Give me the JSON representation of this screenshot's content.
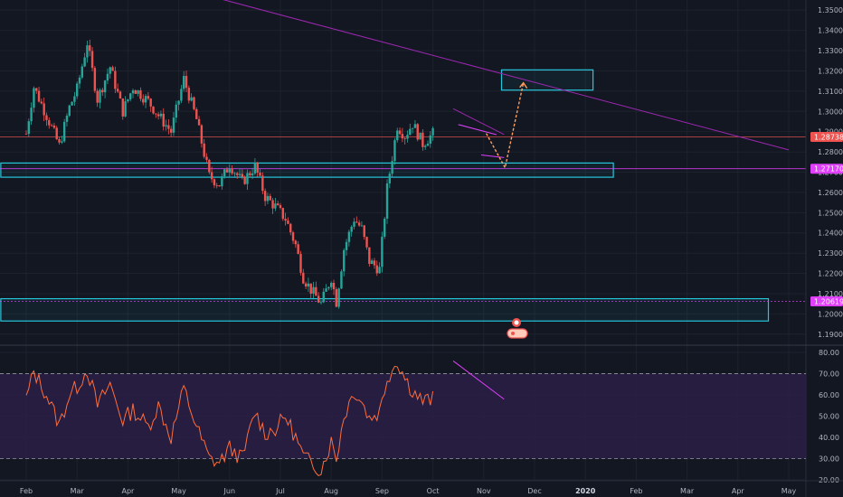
{
  "chart_data": [
    {
      "type": "candlestick",
      "instrument_panel": "price",
      "ylim": [
        1.185,
        1.355
      ],
      "y_ticks": [
        "1.35000",
        "1.34000",
        "1.33000",
        "1.32000",
        "1.31000",
        "1.30000",
        "1.29000",
        "1.28000",
        "1.27000",
        "1.26000",
        "1.25000",
        "1.24000",
        "1.23000",
        "1.22000",
        "1.21000",
        "1.20000",
        "1.19000"
      ],
      "price_tags": [
        {
          "label": "1.28738",
          "value": 1.2874,
          "color": "#ef5350"
        },
        {
          "label": "1.27170",
          "value": 1.2717,
          "color": "#e040fb"
        },
        {
          "label": "1.20619",
          "value": 1.2062,
          "color": "#e040fb"
        }
      ],
      "anchors": [
        {
          "m": 0.0,
          "price": 1.289
        },
        {
          "m": 0.15,
          "price": 1.312
        },
        {
          "m": 0.4,
          "price": 1.298
        },
        {
          "m": 0.65,
          "price": 1.283
        },
        {
          "m": 0.85,
          "price": 1.302
        },
        {
          "m": 1.0,
          "price": 1.311
        },
        {
          "m": 1.2,
          "price": 1.334
        },
        {
          "m": 1.4,
          "price": 1.306
        },
        {
          "m": 1.65,
          "price": 1.322
        },
        {
          "m": 1.9,
          "price": 1.3
        },
        {
          "m": 2.1,
          "price": 1.312
        },
        {
          "m": 2.4,
          "price": 1.305
        },
        {
          "m": 2.6,
          "price": 1.298
        },
        {
          "m": 2.85,
          "price": 1.29
        },
        {
          "m": 3.1,
          "price": 1.316
        },
        {
          "m": 3.35,
          "price": 1.296
        },
        {
          "m": 3.6,
          "price": 1.268
        },
        {
          "m": 3.8,
          "price": 1.264
        },
        {
          "m": 4.0,
          "price": 1.274
        },
        {
          "m": 4.25,
          "price": 1.265
        },
        {
          "m": 4.5,
          "price": 1.273
        },
        {
          "m": 4.7,
          "price": 1.258
        },
        {
          "m": 4.9,
          "price": 1.253
        },
        {
          "m": 5.1,
          "price": 1.247
        },
        {
          "m": 5.3,
          "price": 1.234
        },
        {
          "m": 5.45,
          "price": 1.218
        },
        {
          "m": 5.6,
          "price": 1.212
        },
        {
          "m": 5.8,
          "price": 1.205
        },
        {
          "m": 6.0,
          "price": 1.218
        },
        {
          "m": 6.1,
          "price": 1.206
        },
        {
          "m": 6.25,
          "price": 1.232
        },
        {
          "m": 6.45,
          "price": 1.247
        },
        {
          "m": 6.6,
          "price": 1.242
        },
        {
          "m": 6.75,
          "price": 1.226
        },
        {
          "m": 6.95,
          "price": 1.222
        },
        {
          "m": 7.1,
          "price": 1.262
        },
        {
          "m": 7.3,
          "price": 1.293
        },
        {
          "m": 7.45,
          "price": 1.288
        },
        {
          "m": 7.6,
          "price": 1.294
        },
        {
          "m": 7.8,
          "price": 1.284
        },
        {
          "m": 8.0,
          "price": 1.289
        }
      ],
      "zones": [
        {
          "m0": 9.35,
          "m1": 11.15,
          "p0": 1.3105,
          "p1": 1.3205,
          "color": "#26c6da"
        },
        {
          "m0": -0.5,
          "m1": 11.55,
          "p0": 1.2675,
          "p1": 1.2745,
          "color": "#26c6da"
        },
        {
          "m0": -0.5,
          "m1": 14.6,
          "p0": 1.1965,
          "p1": 1.2075,
          "color": "#26c6da"
        }
      ],
      "trendlines": [
        {
          "m0": 3.6,
          "p0": 1.357,
          "m1": 15.0,
          "p1": 1.281,
          "color": "#9c27b0"
        },
        {
          "m0": 8.4,
          "p0": 1.3013,
          "m1": 9.4,
          "p1": 1.2886,
          "color": "#9c27b0"
        },
        {
          "m0": 8.5,
          "p0": 1.2935,
          "m1": 9.25,
          "p1": 1.2885,
          "color": "#e040fb"
        },
        {
          "m0": 8.95,
          "p0": 1.2785,
          "m1": 9.4,
          "p1": 1.2772,
          "color": "#e040fb"
        }
      ],
      "projection": [
        {
          "m": 9.05,
          "price": 1.2891
        },
        {
          "m": 9.42,
          "price": 1.2722
        },
        {
          "m": 9.78,
          "price": 1.3141
        }
      ]
    },
    {
      "type": "line",
      "instrument_panel": "oscillator",
      "ylim": [
        20,
        83
      ],
      "y_ticks": [
        "80.00",
        "70.00",
        "60.00",
        "50.00",
        "40.00",
        "30.00",
        "20.00"
      ],
      "bands": [
        30,
        70
      ],
      "x_ticks": [
        "Feb",
        "Mar",
        "Apr",
        "May",
        "Jun",
        "Jul",
        "Aug",
        "Sep",
        "Oct",
        "Nov",
        "Dec",
        "2020",
        "Feb",
        "Mar",
        "Apr",
        "May"
      ],
      "anchors": [
        {
          "m": 0.0,
          "value": 58
        },
        {
          "m": 0.15,
          "value": 71
        },
        {
          "m": 0.4,
          "value": 60
        },
        {
          "m": 0.65,
          "value": 46
        },
        {
          "m": 0.85,
          "value": 60
        },
        {
          "m": 1.0,
          "value": 64
        },
        {
          "m": 1.2,
          "value": 72
        },
        {
          "m": 1.4,
          "value": 55
        },
        {
          "m": 1.65,
          "value": 65
        },
        {
          "m": 1.9,
          "value": 48
        },
        {
          "m": 2.1,
          "value": 53
        },
        {
          "m": 2.4,
          "value": 45
        },
        {
          "m": 2.6,
          "value": 55
        },
        {
          "m": 2.85,
          "value": 40
        },
        {
          "m": 3.1,
          "value": 63
        },
        {
          "m": 3.35,
          "value": 45
        },
        {
          "m": 3.6,
          "value": 30
        },
        {
          "m": 3.8,
          "value": 28
        },
        {
          "m": 4.0,
          "value": 35
        },
        {
          "m": 4.25,
          "value": 30
        },
        {
          "m": 4.5,
          "value": 52
        },
        {
          "m": 4.7,
          "value": 42
        },
        {
          "m": 4.9,
          "value": 44
        },
        {
          "m": 5.1,
          "value": 50
        },
        {
          "m": 5.3,
          "value": 40
        },
        {
          "m": 5.45,
          "value": 31
        },
        {
          "m": 5.6,
          "value": 28
        },
        {
          "m": 5.8,
          "value": 25
        },
        {
          "m": 6.0,
          "value": 38
        },
        {
          "m": 6.1,
          "value": 30
        },
        {
          "m": 6.25,
          "value": 50
        },
        {
          "m": 6.45,
          "value": 62
        },
        {
          "m": 6.6,
          "value": 57
        },
        {
          "m": 6.75,
          "value": 49
        },
        {
          "m": 6.95,
          "value": 52
        },
        {
          "m": 7.1,
          "value": 68
        },
        {
          "m": 7.3,
          "value": 76
        },
        {
          "m": 7.45,
          "value": 68
        },
        {
          "m": 7.6,
          "value": 62
        },
        {
          "m": 7.8,
          "value": 57
        },
        {
          "m": 8.0,
          "value": 58
        }
      ],
      "trendline": {
        "m0": 8.4,
        "v0": 76,
        "m1": 9.4,
        "v1": 58,
        "color": "#e040fb"
      }
    }
  ],
  "colors": {
    "background": "#131722",
    "grid": "#1e222d",
    "axis_text": "#b2b5be",
    "candle_up": "#26a69a",
    "candle_down": "#ef5350",
    "oscillator_line": "#ff6d3b",
    "oscillator_band_fill": "#2a1e46",
    "projection": "#ff9e60"
  },
  "icons": [
    "idea-marker-icon"
  ]
}
